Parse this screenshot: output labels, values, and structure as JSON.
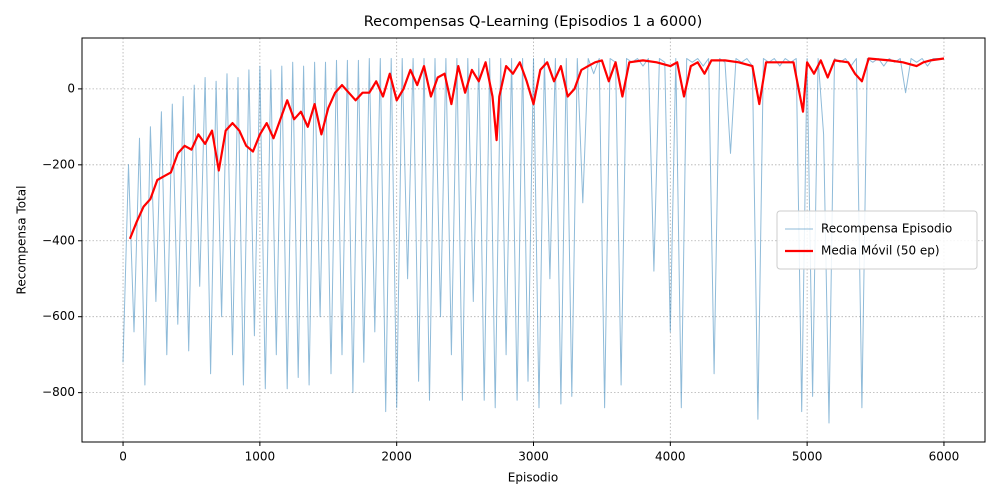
{
  "chart_data": {
    "type": "line",
    "title": "Recompensas Q-Learning (Episodios 1 a 6000)",
    "xlabel": "Episodio",
    "ylabel": "Recompensa Total",
    "xlim": [
      -300,
      6300
    ],
    "xticks": [
      0,
      1000,
      2000,
      3000,
      4000,
      5000,
      6000
    ],
    "ylim": [
      -930,
      134
    ],
    "yticks": [
      {
        "value": -800,
        "label": "−800"
      },
      {
        "value": -600,
        "label": "−600"
      },
      {
        "value": -400,
        "label": "−400"
      },
      {
        "value": -200,
        "label": "−200"
      },
      0
    ],
    "grid": true,
    "legend": "center right",
    "series": [
      {
        "name": "Recompensa Episodio",
        "color": "#1f77b4",
        "alpha": 0.5,
        "linewidth": 1,
        "x": [
          0,
          40,
          80,
          120,
          160,
          200,
          240,
          280,
          320,
          360,
          400,
          440,
          480,
          520,
          560,
          600,
          640,
          680,
          720,
          760,
          800,
          840,
          880,
          920,
          960,
          1000,
          1040,
          1080,
          1120,
          1160,
          1200,
          1240,
          1280,
          1320,
          1360,
          1400,
          1440,
          1480,
          1520,
          1560,
          1600,
          1640,
          1680,
          1720,
          1760,
          1800,
          1840,
          1880,
          1920,
          1960,
          2000,
          2040,
          2080,
          2120,
          2160,
          2200,
          2240,
          2280,
          2320,
          2360,
          2400,
          2440,
          2480,
          2520,
          2560,
          2600,
          2640,
          2680,
          2720,
          2760,
          2800,
          2840,
          2880,
          2920,
          2960,
          3000,
          3040,
          3080,
          3120,
          3160,
          3200,
          3240,
          3280,
          3320,
          3360,
          3400,
          3440,
          3480,
          3520,
          3560,
          3600,
          3640,
          3680,
          3720,
          3760,
          3800,
          3840,
          3880,
          3920,
          3960,
          4000,
          4040,
          4080,
          4120,
          4160,
          4200,
          4240,
          4280,
          4320,
          4360,
          4400,
          4440,
          4480,
          4520,
          4560,
          4600,
          4640,
          4680,
          4720,
          4760,
          4800,
          4840,
          4880,
          4920,
          4960,
          5000,
          5040,
          5080,
          5120,
          5160,
          5200,
          5240,
          5280,
          5320,
          5360,
          5400,
          5440,
          5480,
          5520,
          5560,
          5600,
          5640,
          5680,
          5720,
          5760,
          5800,
          5840,
          5880,
          5920,
          5960,
          6000
        ],
        "values": [
          -720,
          -200,
          -640,
          -130,
          -780,
          -100,
          -560,
          -60,
          -700,
          -40,
          -620,
          -20,
          -690,
          10,
          -520,
          30,
          -750,
          20,
          -600,
          40,
          -700,
          30,
          -780,
          50,
          -650,
          60,
          -790,
          50,
          -700,
          60,
          -790,
          70,
          -760,
          60,
          -780,
          70,
          -600,
          70,
          -750,
          75,
          -700,
          75,
          -800,
          75,
          -720,
          80,
          -640,
          80,
          -850,
          80,
          -840,
          80,
          -500,
          80,
          -770,
          80,
          -820,
          80,
          -600,
          80,
          -700,
          80,
          -820,
          80,
          -560,
          80,
          -820,
          80,
          -840,
          80,
          -700,
          80,
          -820,
          80,
          -770,
          80,
          -840,
          80,
          -500,
          80,
          -830,
          80,
          -810,
          80,
          -300,
          80,
          40,
          80,
          -840,
          80,
          70,
          -780,
          80,
          70,
          80,
          60,
          80,
          -480,
          80,
          70,
          -640,
          80,
          -840,
          80,
          70,
          80,
          60,
          80,
          -750,
          80,
          70,
          -170,
          80,
          70,
          80,
          60,
          -870,
          80,
          70,
          80,
          60,
          80,
          70,
          80,
          -850,
          80,
          -810,
          80,
          -120,
          -880,
          80,
          70,
          80,
          60,
          80,
          -840,
          80,
          70,
          80,
          60,
          80,
          70,
          80,
          -10,
          80,
          70,
          80,
          60,
          80,
          80,
          80
        ]
      },
      {
        "name": "Media Móvil (50 ep)",
        "color": "#ff0000",
        "alpha": 1,
        "linewidth": 2.2,
        "x": [
          50,
          100,
          150,
          200,
          250,
          300,
          350,
          400,
          450,
          500,
          550,
          600,
          650,
          700,
          750,
          800,
          850,
          900,
          950,
          1000,
          1050,
          1100,
          1150,
          1200,
          1250,
          1300,
          1350,
          1400,
          1450,
          1500,
          1550,
          1600,
          1650,
          1700,
          1750,
          1800,
          1850,
          1900,
          1950,
          2000,
          2050,
          2100,
          2150,
          2200,
          2250,
          2300,
          2350,
          2400,
          2450,
          2500,
          2550,
          2600,
          2650,
          2700,
          2730,
          2750,
          2800,
          2850,
          2900,
          2950,
          3000,
          3050,
          3100,
          3150,
          3200,
          3250,
          3300,
          3350,
          3400,
          3450,
          3500,
          3550,
          3600,
          3650,
          3700,
          3800,
          3900,
          4000,
          4050,
          4100,
          4150,
          4200,
          4250,
          4300,
          4400,
          4500,
          4600,
          4650,
          4700,
          4800,
          4900,
          4970,
          5000,
          5050,
          5100,
          5150,
          5200,
          5300,
          5350,
          5400,
          5450,
          5600,
          5700,
          5800,
          5850,
          5900,
          6000
        ],
        "values": [
          -395,
          -350,
          -310,
          -290,
          -240,
          -230,
          -220,
          -170,
          -150,
          -160,
          -120,
          -145,
          -110,
          -215,
          -110,
          -90,
          -110,
          -150,
          -165,
          -120,
          -90,
          -130,
          -80,
          -30,
          -80,
          -60,
          -100,
          -40,
          -120,
          -50,
          -10,
          10,
          -10,
          -30,
          -10,
          -10,
          20,
          -20,
          40,
          -30,
          0,
          50,
          10,
          60,
          -20,
          30,
          40,
          -40,
          60,
          -10,
          50,
          20,
          70,
          -20,
          -135,
          -20,
          60,
          40,
          70,
          20,
          -40,
          50,
          70,
          20,
          60,
          -20,
          0,
          50,
          60,
          70,
          75,
          20,
          70,
          -20,
          70,
          75,
          70,
          60,
          70,
          -20,
          60,
          70,
          40,
          75,
          75,
          70,
          60,
          -40,
          70,
          70,
          70,
          -60,
          70,
          40,
          75,
          30,
          75,
          70,
          40,
          20,
          80,
          75,
          70,
          60,
          70,
          75,
          80
        ]
      }
    ]
  }
}
